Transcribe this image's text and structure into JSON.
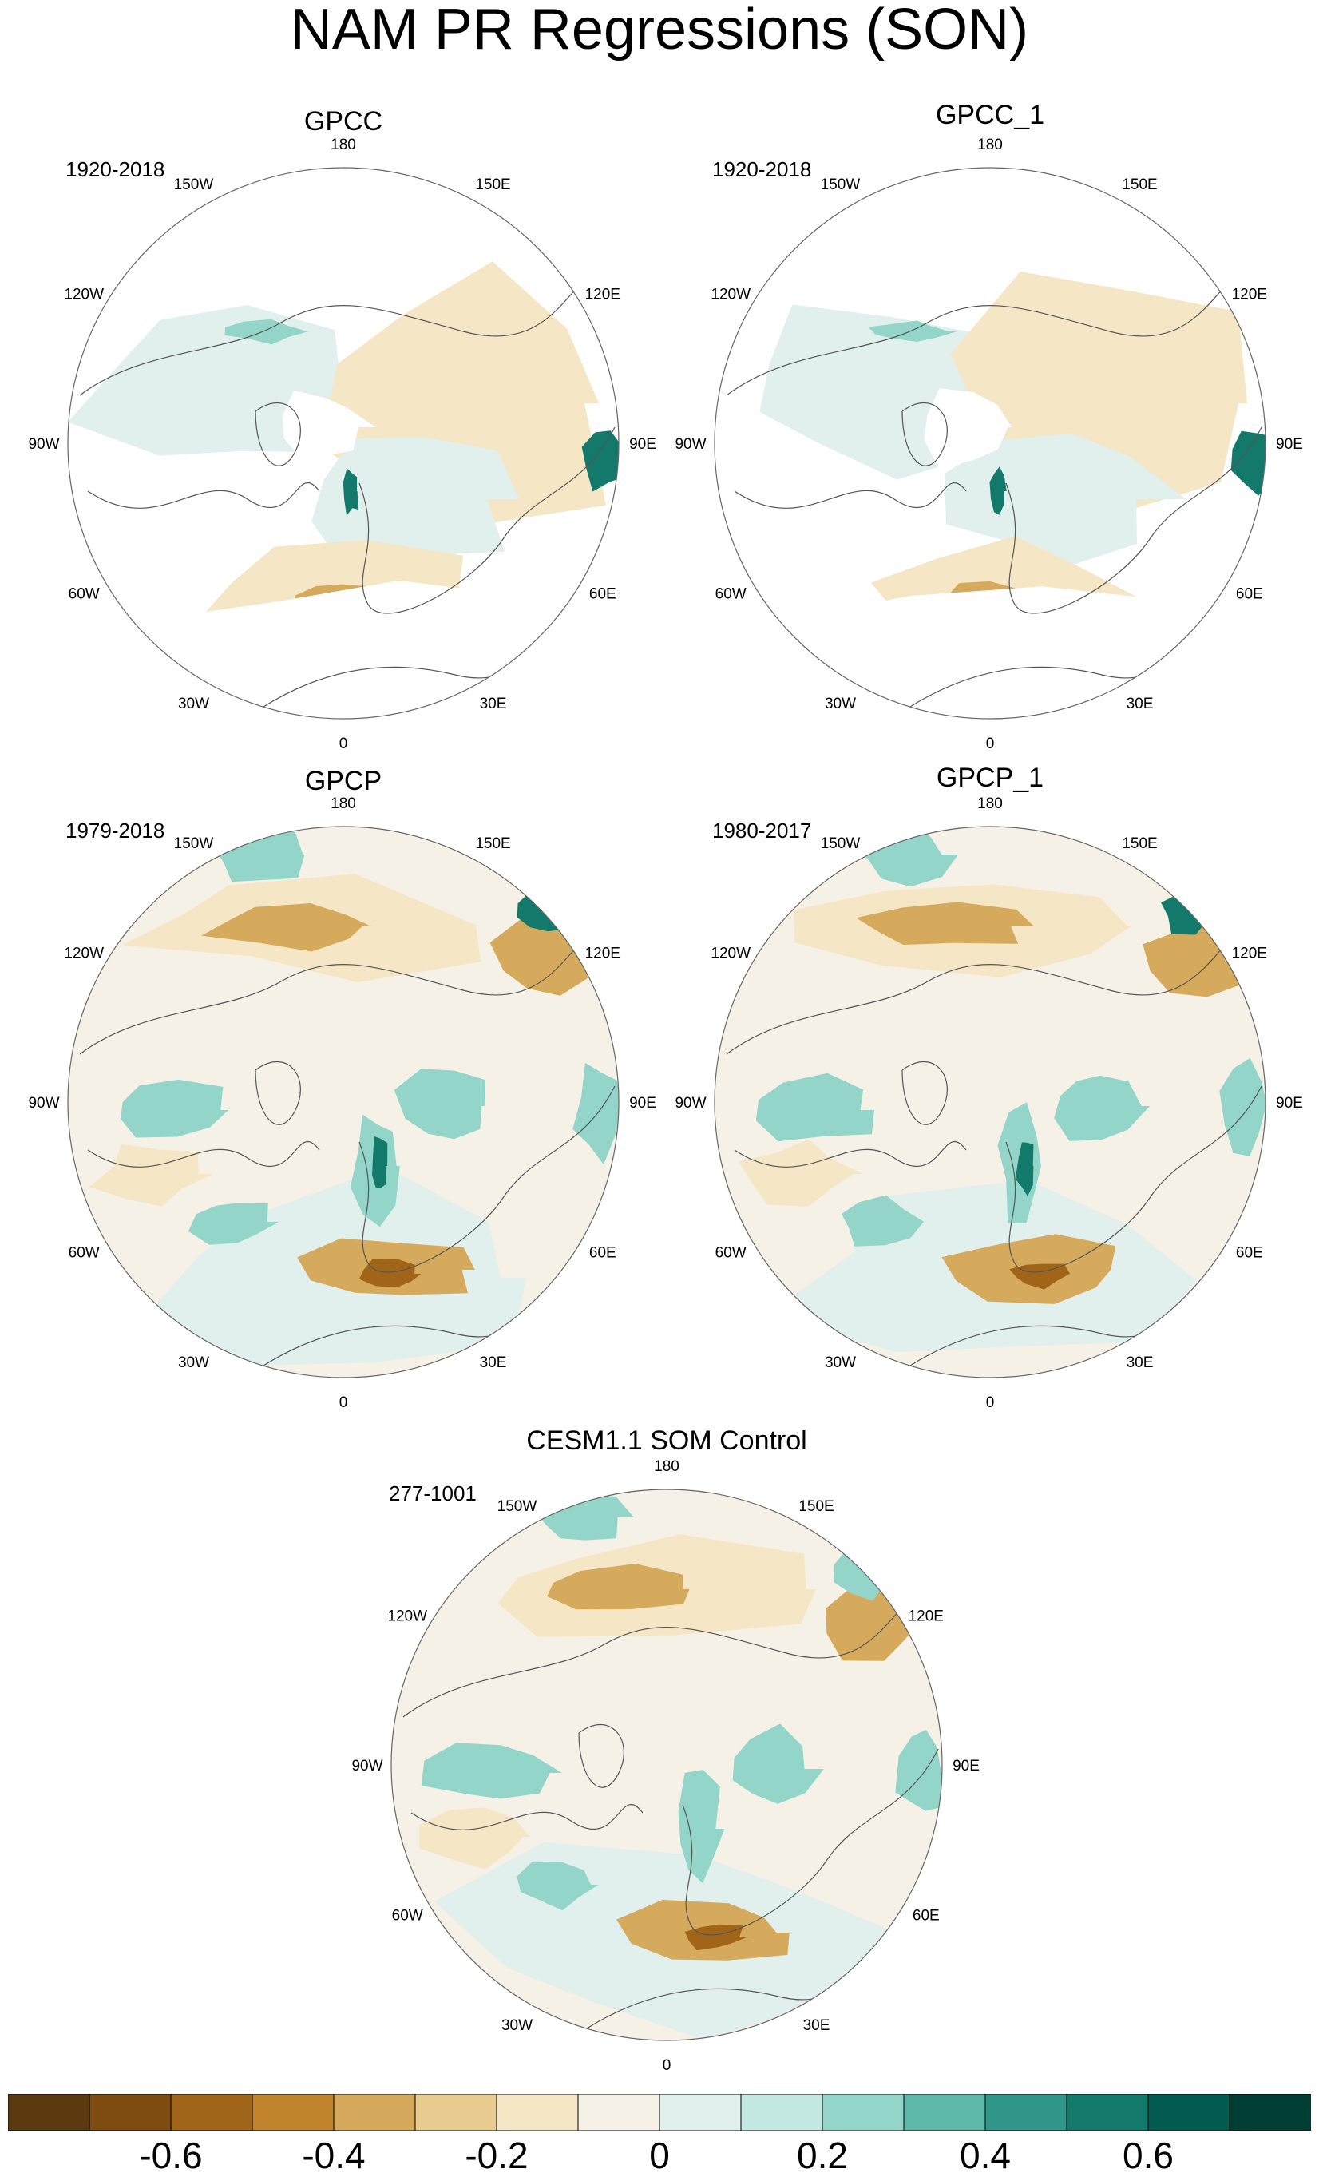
{
  "figure": {
    "title": "NAM PR Regressions (SON)"
  },
  "panels": [
    {
      "title": "GPCC",
      "period": "1920-2018",
      "style": "gauge"
    },
    {
      "title": "GPCC_1",
      "period": "1920-2018",
      "style": "gauge"
    },
    {
      "title": "GPCP",
      "period": "1979-2018",
      "style": "full"
    },
    {
      "title": "GPCP_1",
      "period": "1980-2017",
      "style": "full"
    },
    {
      "title": "CESM1.1 SOM Control",
      "period": "277-1001",
      "style": "model"
    }
  ],
  "longitude_labels": [
    "180",
    "150E",
    "120E",
    "90E",
    "60E",
    "30E",
    "0",
    "30W",
    "60W",
    "90W",
    "120W",
    "150W"
  ],
  "colorbar": {
    "colors": [
      "#5c3a0f",
      "#7e4b10",
      "#a06518",
      "#c0842e",
      "#d5aa5c",
      "#e8cc8f",
      "#f5e6c6",
      "#f5f1e6",
      "#e1efed",
      "#c2e8e1",
      "#94d5ca",
      "#5eb8aa",
      "#31978a",
      "#137a6b",
      "#035c4f",
      "#003d33"
    ],
    "tick_labels": [
      "-0.6",
      "-0.4",
      "-0.2",
      "0",
      "0.2",
      "0.4",
      "0.6"
    ],
    "tick_positions": [
      2,
      4,
      6,
      8,
      10,
      12,
      14
    ]
  },
  "palette": {
    "dry_strong": "#a06518",
    "dry_mid": "#d5aa5c",
    "dry_light": "#f5e6c6",
    "neutral": "#f5f1e6",
    "wet_light": "#e1efed",
    "wet_mid": "#94d5ca",
    "wet_strong": "#137a6b"
  }
}
